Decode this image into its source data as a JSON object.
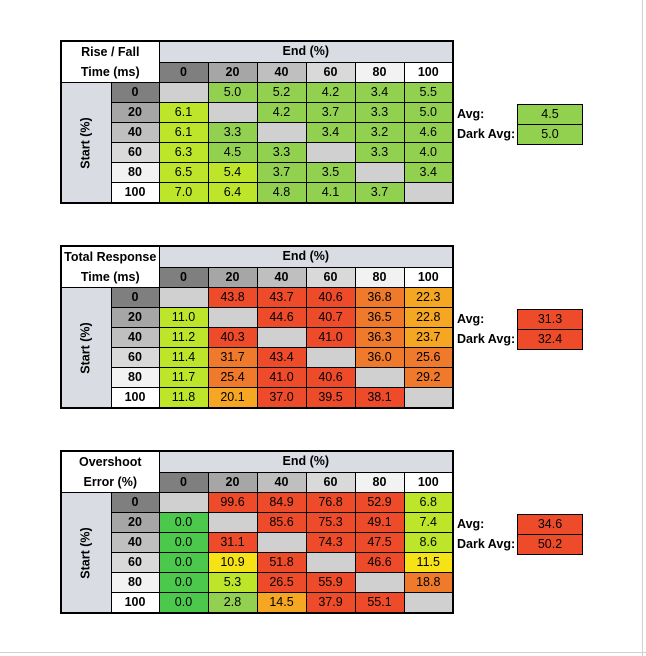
{
  "colors": {
    "header_gray": "#d9dde3",
    "col0_dark": "#7f7f7f",
    "col20_gray": "#a6a6a6",
    "col40_gray": "#bfbfbf",
    "col60_gray": "#d9d9d9",
    "col80_gray": "#f2f2f2",
    "col100_white": "#ffffff",
    "diag_gray": "#d0d0d0",
    "green": "#4cc84c",
    "lightgreen": "#92d050",
    "yellowgreen": "#bde52a",
    "yellow": "#f5e318",
    "orange": "#f5a623",
    "darkorange": "#f07a2c",
    "red": "#ee4b2b"
  },
  "chart_data": [
    {
      "type": "table",
      "title_lines": [
        "Rise / Fall",
        "Time (ms)"
      ],
      "column_header": "End (%)",
      "row_header": "Start (%)",
      "columns": [
        "0",
        "20",
        "40",
        "60",
        "80",
        "100"
      ],
      "rows": [
        {
          "start": "0",
          "values": [
            "",
            "5.0",
            "5.2",
            "4.2",
            "3.4",
            "5.5"
          ],
          "colors": [
            "diag_gray",
            "lightgreen",
            "lightgreen",
            "lightgreen",
            "lightgreen",
            "lightgreen"
          ]
        },
        {
          "start": "20",
          "values": [
            "6.1",
            "",
            "4.2",
            "3.7",
            "3.3",
            "5.0"
          ],
          "colors": [
            "yellowgreen",
            "diag_gray",
            "lightgreen",
            "lightgreen",
            "lightgreen",
            "lightgreen"
          ]
        },
        {
          "start": "40",
          "values": [
            "6.1",
            "3.3",
            "",
            "3.4",
            "3.2",
            "4.6"
          ],
          "colors": [
            "yellowgreen",
            "lightgreen",
            "diag_gray",
            "lightgreen",
            "lightgreen",
            "lightgreen"
          ]
        },
        {
          "start": "60",
          "values": [
            "6.3",
            "4.5",
            "3.3",
            "",
            "3.3",
            "4.0"
          ],
          "colors": [
            "yellowgreen",
            "lightgreen",
            "lightgreen",
            "diag_gray",
            "lightgreen",
            "lightgreen"
          ]
        },
        {
          "start": "80",
          "values": [
            "6.5",
            "5.4",
            "3.7",
            "3.5",
            "",
            "3.4"
          ],
          "colors": [
            "yellowgreen",
            "yellowgreen",
            "lightgreen",
            "lightgreen",
            "diag_gray",
            "lightgreen"
          ]
        },
        {
          "start": "100",
          "values": [
            "7.0",
            "6.4",
            "4.8",
            "4.1",
            "3.7",
            ""
          ],
          "colors": [
            "yellowgreen",
            "yellowgreen",
            "lightgreen",
            "lightgreen",
            "lightgreen",
            "diag_gray"
          ]
        }
      ],
      "avg_label": "Avg:",
      "avg_value": "4.5",
      "avg_color": "lightgreen",
      "dark_avg_label": "Dark Avg:",
      "dark_avg_value": "5.0",
      "dark_avg_color": "lightgreen"
    },
    {
      "type": "table",
      "title_lines": [
        "Total Response",
        "Time (ms)"
      ],
      "column_header": "End (%)",
      "row_header": "Start (%)",
      "columns": [
        "0",
        "20",
        "40",
        "60",
        "80",
        "100"
      ],
      "rows": [
        {
          "start": "0",
          "values": [
            "",
            "43.8",
            "43.7",
            "40.6",
            "36.8",
            "22.3"
          ],
          "colors": [
            "diag_gray",
            "red",
            "red",
            "red",
            "darkorange",
            "orange"
          ]
        },
        {
          "start": "20",
          "values": [
            "11.0",
            "",
            "44.6",
            "40.7",
            "36.5",
            "22.8"
          ],
          "colors": [
            "yellowgreen",
            "diag_gray",
            "red",
            "red",
            "darkorange",
            "orange"
          ]
        },
        {
          "start": "40",
          "values": [
            "11.2",
            "40.3",
            "",
            "41.0",
            "36.3",
            "23.7"
          ],
          "colors": [
            "yellowgreen",
            "red",
            "diag_gray",
            "red",
            "darkorange",
            "orange"
          ]
        },
        {
          "start": "60",
          "values": [
            "11.4",
            "31.7",
            "43.4",
            "",
            "36.0",
            "25.6"
          ],
          "colors": [
            "yellowgreen",
            "darkorange",
            "red",
            "diag_gray",
            "darkorange",
            "darkorange"
          ]
        },
        {
          "start": "80",
          "values": [
            "11.7",
            "25.4",
            "41.0",
            "40.6",
            "",
            "29.2"
          ],
          "colors": [
            "yellowgreen",
            "darkorange",
            "red",
            "red",
            "diag_gray",
            "darkorange"
          ]
        },
        {
          "start": "100",
          "values": [
            "11.8",
            "20.1",
            "37.0",
            "39.5",
            "38.1",
            ""
          ],
          "colors": [
            "yellowgreen",
            "orange",
            "red",
            "red",
            "red",
            "diag_gray"
          ]
        }
      ],
      "avg_label": "Avg:",
      "avg_value": "31.3",
      "avg_color": "red",
      "dark_avg_label": "Dark Avg:",
      "dark_avg_value": "32.4",
      "dark_avg_color": "red"
    },
    {
      "type": "table",
      "title_lines": [
        "Overshoot",
        "Error (%)"
      ],
      "column_header": "End (%)",
      "row_header": "Start (%)",
      "columns": [
        "0",
        "20",
        "40",
        "60",
        "80",
        "100"
      ],
      "rows": [
        {
          "start": "0",
          "values": [
            "",
            "99.6",
            "84.9",
            "76.8",
            "52.9",
            "6.8"
          ],
          "colors": [
            "diag_gray",
            "red",
            "red",
            "red",
            "red",
            "yellowgreen"
          ]
        },
        {
          "start": "20",
          "values": [
            "0.0",
            "",
            "85.6",
            "75.3",
            "49.1",
            "7.4"
          ],
          "colors": [
            "green",
            "diag_gray",
            "red",
            "red",
            "red",
            "yellowgreen"
          ]
        },
        {
          "start": "40",
          "values": [
            "0.0",
            "31.1",
            "",
            "74.3",
            "47.5",
            "8.6"
          ],
          "colors": [
            "green",
            "red",
            "diag_gray",
            "red",
            "red",
            "yellowgreen"
          ]
        },
        {
          "start": "60",
          "values": [
            "0.0",
            "10.9",
            "51.8",
            "",
            "46.6",
            "11.5"
          ],
          "colors": [
            "green",
            "yellow",
            "red",
            "diag_gray",
            "red",
            "yellow"
          ]
        },
        {
          "start": "80",
          "values": [
            "0.0",
            "5.3",
            "26.5",
            "55.9",
            "",
            "18.8"
          ],
          "colors": [
            "green",
            "yellowgreen",
            "red",
            "red",
            "diag_gray",
            "darkorange"
          ]
        },
        {
          "start": "100",
          "values": [
            "0.0",
            "2.8",
            "14.5",
            "37.9",
            "55.1",
            ""
          ],
          "colors": [
            "green",
            "lightgreen",
            "orange",
            "red",
            "red",
            "diag_gray"
          ]
        }
      ],
      "avg_label": "Avg:",
      "avg_value": "34.6",
      "avg_color": "red",
      "dark_avg_label": "Dark Avg:",
      "dark_avg_value": "50.2",
      "dark_avg_color": "red"
    }
  ]
}
